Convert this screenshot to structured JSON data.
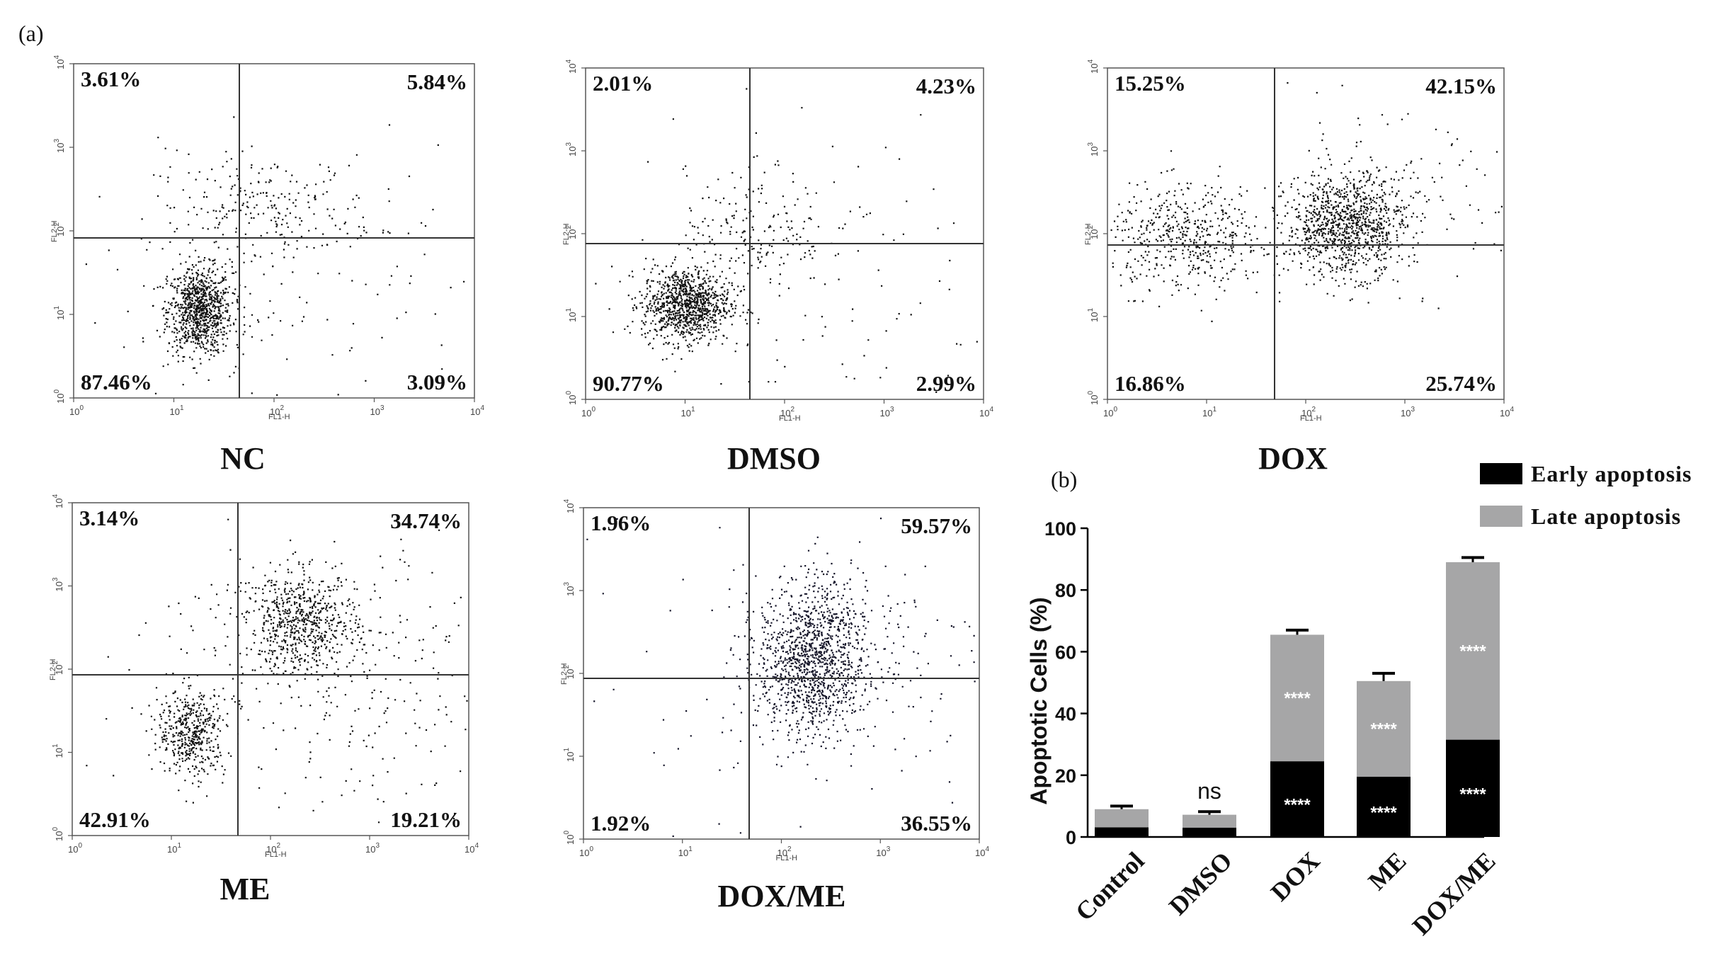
{
  "panel_a_label": "(a)",
  "panel_b_label": "(b)",
  "flow_axes": {
    "xlabel": "FL1-H",
    "ylabel": "FL2-H",
    "tick_base": "10",
    "tick_exponents": [
      "0",
      "1",
      "2",
      "3",
      "4"
    ]
  },
  "chart_data": [
    {
      "type": "scatter",
      "title": "NC",
      "xlabel": "FL1-H",
      "ylabel": "FL2-H",
      "scale": "log",
      "xlim": [
        1,
        10000
      ],
      "ylim": [
        1,
        10000
      ],
      "quadrants": {
        "upper_left": "3.61%",
        "upper_right": "5.84%",
        "lower_left": "87.46%",
        "lower_right": "3.09%"
      }
    },
    {
      "type": "scatter",
      "title": "DMSO",
      "xlabel": "FL1-H",
      "ylabel": "FL2-H",
      "scale": "log",
      "xlim": [
        1,
        10000
      ],
      "ylim": [
        1,
        10000
      ],
      "quadrants": {
        "upper_left": "2.01%",
        "upper_right": "4.23%",
        "lower_left": "90.77%",
        "lower_right": "2.99%"
      }
    },
    {
      "type": "scatter",
      "title": "DOX",
      "xlabel": "FL1-H",
      "ylabel": "FL2-H",
      "scale": "log",
      "xlim": [
        1,
        10000
      ],
      "ylim": [
        1,
        10000
      ],
      "quadrants": {
        "upper_left": "15.25%",
        "upper_right": "42.15%",
        "lower_left": "16.86%",
        "lower_right": "25.74%"
      }
    },
    {
      "type": "scatter",
      "title": "ME",
      "xlabel": "FL1-H",
      "ylabel": "FL2-H",
      "scale": "log",
      "xlim": [
        1,
        10000
      ],
      "ylim": [
        1,
        10000
      ],
      "quadrants": {
        "upper_left": "3.14%",
        "upper_right": "34.74%",
        "lower_left": "42.91%",
        "lower_right": "19.21%"
      }
    },
    {
      "type": "scatter",
      "title": "DOX/ME",
      "xlabel": "FL1-H",
      "ylabel": "FL2-H",
      "scale": "log",
      "xlim": [
        1,
        10000
      ],
      "ylim": [
        1,
        10000
      ],
      "quadrants": {
        "upper_left": "1.96%",
        "upper_right": "59.57%",
        "lower_left": "1.92%",
        "lower_right": "36.55%"
      }
    },
    {
      "type": "bar",
      "stacked": true,
      "ylabel": "Apoptotic Cells (%)",
      "ylim": [
        0,
        100
      ],
      "yticks": [
        "0",
        "20",
        "40",
        "60",
        "80",
        "100"
      ],
      "categories": [
        "Control",
        "DMSO",
        "DOX",
        "ME",
        "DOX/ME"
      ],
      "series": [
        {
          "name": "Early apoptosis",
          "color": "#000000",
          "values": [
            3.1,
            3.0,
            24.5,
            19.5,
            31.5
          ]
        },
        {
          "name": "Late apoptosis",
          "color": "#a6a6a7",
          "values": [
            5.9,
            4.2,
            41.0,
            31.0,
            57.5
          ]
        }
      ],
      "error_top": [
        1.0,
        1.0,
        1.5,
        2.5,
        1.5
      ],
      "annotations": {
        "ns": "ns",
        "significance": "****"
      }
    }
  ]
}
